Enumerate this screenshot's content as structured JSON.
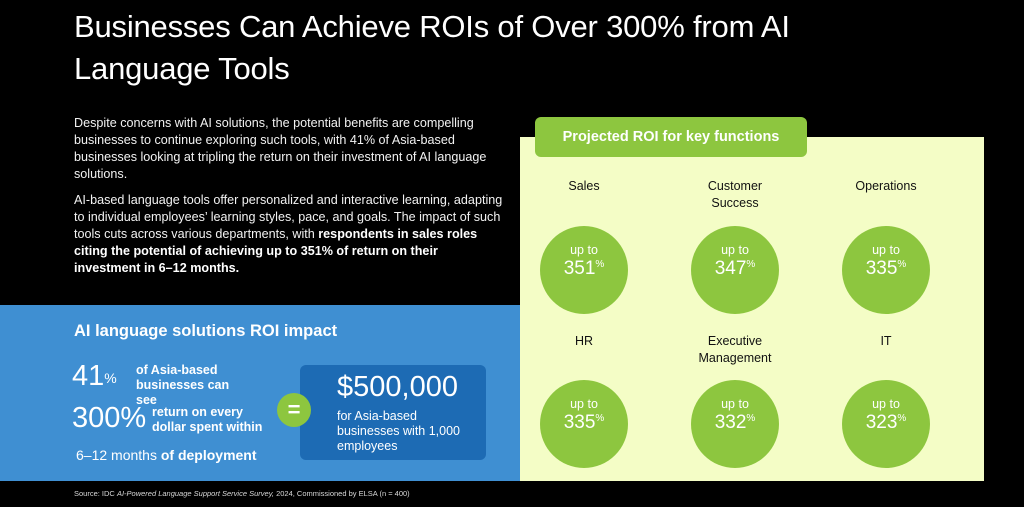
{
  "title": "Businesses Can Achieve ROIs of Over 300% from AI Language Tools",
  "intro": {
    "p1": "Despite concerns with AI solutions, the potential benefits are compelling businesses to continue exploring such tools, with 41% of Asia-based businesses looking at tripling the return on their investment of AI language solutions.",
    "p2_plain": "AI-based language tools offer personalized and interactive learning, adapting to individual employees’ learning styles, pace, and goals. The impact of such tools cuts across various departments, with ",
    "p2_bold": "respondents in sales roles citing the potential of achieving up to 351% of return on their investment in 6–12 months."
  },
  "roi_impact": {
    "title": "AI language solutions ROI impact",
    "stat1_value": "41",
    "stat1_unit": "%",
    "stat1_text": "of Asia-based businesses can see",
    "stat2_value": "300%",
    "stat2_text": "return on every dollar spent within",
    "months_value": "6–12 months",
    "months_text": "of deployment",
    "equals": "=",
    "amount": "$500,000",
    "amount_desc": "for Asia-based businesses with 1,000 employees"
  },
  "projected": {
    "title": "Projected ROI for key functions",
    "up_to": "up to",
    "unit": "%",
    "functions": [
      {
        "label": "Sales",
        "value": "351"
      },
      {
        "label": "Customer Success",
        "value": "347"
      },
      {
        "label": "Operations",
        "value": "335"
      },
      {
        "label": "HR",
        "value": "335"
      },
      {
        "label": "Executive Management",
        "value": "332"
      },
      {
        "label": "IT",
        "value": "323"
      }
    ]
  },
  "source": {
    "prefix": "Source: IDC ",
    "italic": "AI-Powered Language Support Service Survey,",
    "suffix": " 2024, Commissioned by ELSA (n = 400)"
  }
}
